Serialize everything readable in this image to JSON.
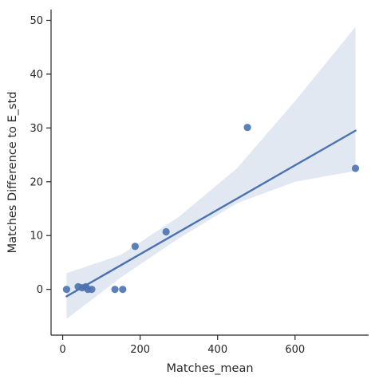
{
  "chart_data": {
    "type": "scatter",
    "title": "",
    "xlabel": "Matches_mean",
    "ylabel": "Matches Difference to E_std",
    "xlim": [
      -30,
      790
    ],
    "ylim": [
      -8.5,
      52
    ],
    "xticks": [
      0,
      200,
      400,
      600
    ],
    "yticks": [
      0,
      10,
      20,
      30,
      40,
      50
    ],
    "grid": false,
    "legend": false,
    "colors": {
      "points": "#4c72b0",
      "line": "#4c72b0",
      "band": "#dde4f0",
      "axes": "#262626"
    },
    "points": [
      {
        "x": 10,
        "y": 0.0
      },
      {
        "x": 40,
        "y": 0.5
      },
      {
        "x": 50,
        "y": 0.3
      },
      {
        "x": 60,
        "y": 0.5
      },
      {
        "x": 65,
        "y": 0.0
      },
      {
        "x": 75,
        "y": 0.0
      },
      {
        "x": 135,
        "y": 0.0
      },
      {
        "x": 155,
        "y": 0.0
      },
      {
        "x": 187,
        "y": 8.0
      },
      {
        "x": 267,
        "y": 10.7
      },
      {
        "x": 477,
        "y": 30.1
      },
      {
        "x": 756,
        "y": 22.5
      }
    ],
    "regression": {
      "line": [
        {
          "x": 10,
          "y": -1.3
        },
        {
          "x": 756,
          "y": 29.5
        }
      ],
      "ci_upper": [
        {
          "x": 10,
          "y": 3.0
        },
        {
          "x": 150,
          "y": 6.4
        },
        {
          "x": 300,
          "y": 13.5
        },
        {
          "x": 450,
          "y": 22.5
        },
        {
          "x": 600,
          "y": 35.0
        },
        {
          "x": 756,
          "y": 48.8
        }
      ],
      "ci_lower": [
        {
          "x": 10,
          "y": -5.5
        },
        {
          "x": 150,
          "y": 2.2
        },
        {
          "x": 300,
          "y": 9.5
        },
        {
          "x": 450,
          "y": 16.0
        },
        {
          "x": 600,
          "y": 20.0
        },
        {
          "x": 756,
          "y": 22.0
        }
      ]
    }
  }
}
